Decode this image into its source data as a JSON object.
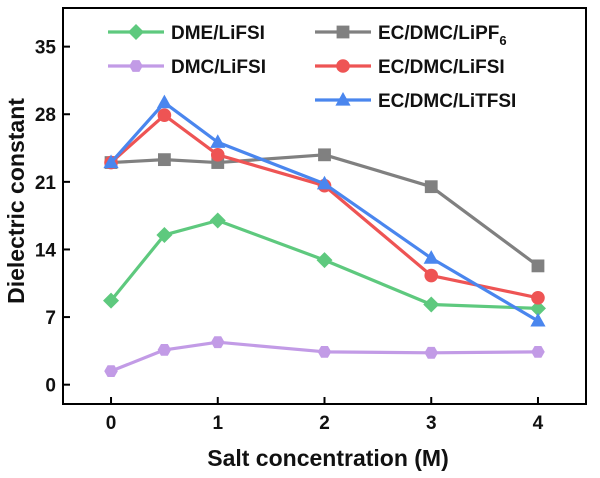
{
  "chart_data": {
    "type": "line",
    "title": "",
    "xlabel": "Salt concentration (M)",
    "ylabel": "Dielectric constant",
    "xlim": [
      -0.45,
      4.45
    ],
    "ylim": [
      -2,
      39
    ],
    "xticks": [
      0,
      1,
      2,
      3,
      4
    ],
    "yticks": [
      0,
      7,
      14,
      21,
      28,
      35
    ],
    "x": [
      0,
      0.5,
      1,
      2,
      3,
      4
    ],
    "grid": false,
    "legend": [
      {
        "key": "dme-lifsi",
        "label": "DME/LiFSI",
        "color": "#5ec97e",
        "marker": "diamond"
      },
      {
        "key": "ec-lipf6",
        "label": "EC/DMC/LiPF",
        "sub": "6",
        "color": "#808080",
        "marker": "square"
      },
      {
        "key": "dmc-lifsi",
        "label": "DMC/LiFSI",
        "color": "#c29be6",
        "marker": "hexagon"
      },
      {
        "key": "ec-lifsi",
        "label": "EC/DMC/LiFSI",
        "color": "#ee5454",
        "marker": "circle"
      },
      {
        "key": "ec-litfsi",
        "label": "EC/DMC/LiTFSI",
        "color": "#4a86ee",
        "marker": "triangle"
      }
    ],
    "series": [
      {
        "key": "ec-lipf6",
        "name": "EC/DMC/LiPF6",
        "values": [
          23.0,
          23.3,
          23.0,
          23.8,
          20.5,
          12.3
        ]
      },
      {
        "key": "dmc-lifsi",
        "name": "DMC/LiFSI",
        "values": [
          1.4,
          3.6,
          4.4,
          3.4,
          3.3,
          3.4
        ]
      },
      {
        "key": "dme-lifsi",
        "name": "DME/LiFSI",
        "values": [
          8.7,
          15.5,
          17.0,
          12.9,
          8.3,
          7.9
        ]
      },
      {
        "key": "ec-lifsi",
        "name": "EC/DMC/LiFSI",
        "values": [
          23.0,
          27.9,
          23.8,
          20.6,
          11.3,
          9.0
        ]
      },
      {
        "key": "ec-litfsi",
        "name": "EC/DMC/LiTFSI",
        "values": [
          23.0,
          29.2,
          25.1,
          20.8,
          13.1,
          6.6
        ]
      }
    ]
  }
}
